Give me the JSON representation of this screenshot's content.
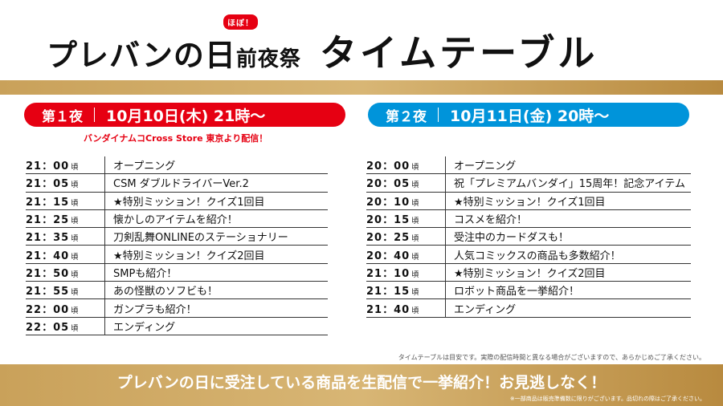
{
  "header": {
    "logo_main": "プレバンの日",
    "logo_badge": "ほぼ！",
    "logo_sub": "前夜祭",
    "title": "タイムテーブル"
  },
  "colors": {
    "night1": "#e60012",
    "night2": "#0094da",
    "gold": "#c9a15a"
  },
  "night1": {
    "label": "第１夜",
    "date": "10月10日(木) 21時～",
    "note": "バンダイナムコCross Store 東京より配信！",
    "rows": [
      {
        "time": "21：00",
        "suffix": "頃",
        "desc": "オープニング"
      },
      {
        "time": "21：05",
        "suffix": "頃",
        "desc": "CSM ダブルドライバーVer.2"
      },
      {
        "time": "21：15",
        "suffix": "頃",
        "desc": "★特別ミッション！クイズ1回目"
      },
      {
        "time": "21：25",
        "suffix": "頃",
        "desc": "懐かしのアイテムを紹介！"
      },
      {
        "time": "21：35",
        "suffix": "頃",
        "desc": "刀剣乱舞ONLINEのステーショナリー"
      },
      {
        "time": "21：40",
        "suffix": "頃",
        "desc": "★特別ミッション！クイズ2回目"
      },
      {
        "time": "21：50",
        "suffix": "頃",
        "desc": "SMPも紹介！"
      },
      {
        "time": "21：55",
        "suffix": "頃",
        "desc": "あの怪獣のソフビも！"
      },
      {
        "time": "22：00",
        "suffix": "頃",
        "desc": "ガンプラも紹介！"
      },
      {
        "time": "22：05",
        "suffix": "頃",
        "desc": "エンディング"
      }
    ]
  },
  "night2": {
    "label": "第２夜",
    "date": "10月11日(金) 20時～",
    "rows": [
      {
        "time": "20：00",
        "suffix": "頃",
        "desc": "オープニング"
      },
      {
        "time": "20：05",
        "suffix": "頃",
        "desc": "祝「プレミアムバンダイ」15周年！記念アイテム"
      },
      {
        "time": "20：10",
        "suffix": "頃",
        "desc": "★特別ミッション！クイズ1回目"
      },
      {
        "time": "20：15",
        "suffix": "頃",
        "desc": "コスメを紹介！"
      },
      {
        "time": "20：25",
        "suffix": "頃",
        "desc": "受注中のカードダスも！"
      },
      {
        "time": "20：40",
        "suffix": "頃",
        "desc": "人気コミックスの商品も多数紹介！"
      },
      {
        "time": "21：10",
        "suffix": "頃",
        "desc": "★特別ミッション！クイズ2回目"
      },
      {
        "time": "21：15",
        "suffix": "頃",
        "desc": "ロボット商品を一挙紹介！"
      },
      {
        "time": "21：40",
        "suffix": "頃",
        "desc": "エンディング"
      }
    ]
  },
  "disclaimer": "タイムテーブルは目安です。実際の配信時間と異なる場合がございますので、あらかじめご了承ください。",
  "footer": {
    "message": "プレバンの日に受注している商品を生配信で一挙紹介！お見逃しなく！",
    "note": "※一部商品は販売準備数に限りがございます。品切れの際はご了承ください。"
  }
}
